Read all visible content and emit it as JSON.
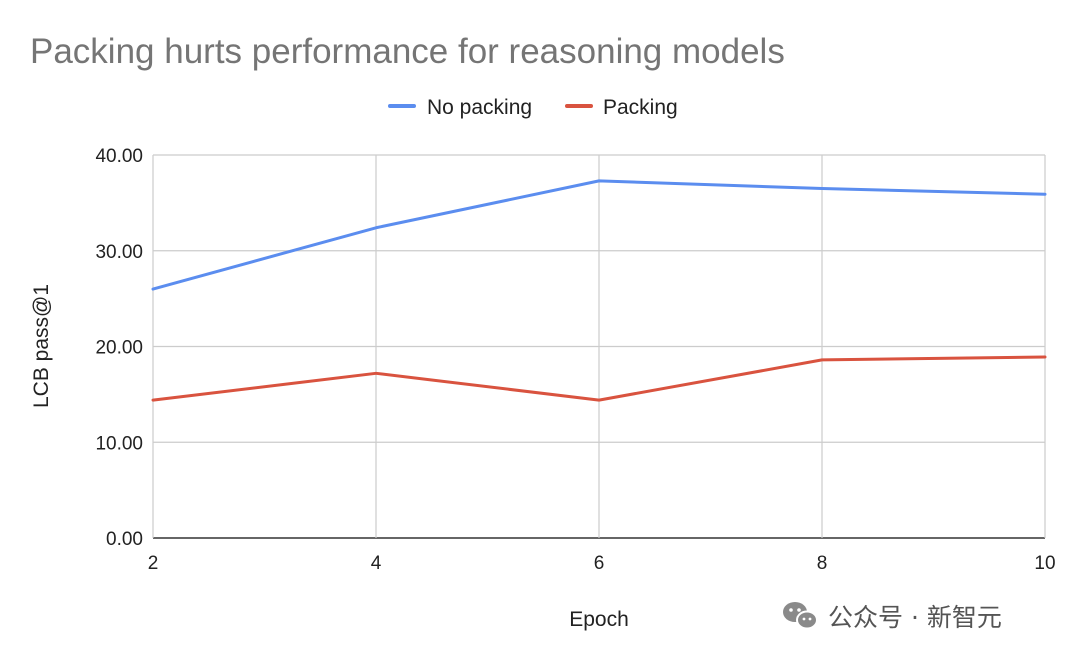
{
  "chart_data": {
    "type": "line",
    "title": "Packing hurts performance for reasoning models",
    "xlabel": "Epoch",
    "ylabel": "LCB pass@1",
    "x": [
      2,
      4,
      6,
      8,
      10
    ],
    "x_tick_labels": [
      "2",
      "4",
      "6",
      "8",
      "10"
    ],
    "xlim": [
      2,
      10
    ],
    "ylim": [
      0,
      40
    ],
    "y_ticks": [
      0,
      10,
      20,
      30,
      40
    ],
    "y_tick_labels": [
      "0.00",
      "10.00",
      "20.00",
      "30.00",
      "40.00"
    ],
    "grid": true,
    "legend_position": "top-center",
    "series": [
      {
        "name": "No packing",
        "color": "#5b8def",
        "values": [
          26.0,
          32.4,
          37.3,
          36.5,
          35.9
        ]
      },
      {
        "name": "Packing",
        "color": "#d9533f",
        "values": [
          14.4,
          17.2,
          14.4,
          18.6,
          18.9
        ]
      }
    ]
  },
  "watermark": {
    "icon": "wechat-icon",
    "text": "公众号 · 新智元"
  }
}
